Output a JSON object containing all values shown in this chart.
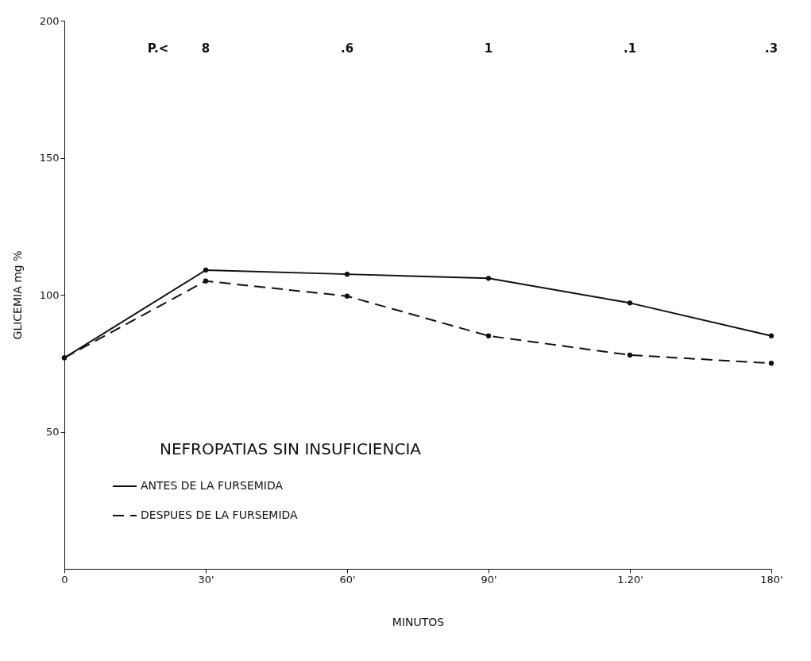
{
  "chart_data": {
    "type": "line",
    "categories": [
      "0",
      "30'",
      "60'",
      "90'",
      "1.20'",
      "180'"
    ],
    "series": [
      {
        "name": "ANTES DE LA FURSEMIDA",
        "color": "#111111",
        "line_style": "solid",
        "values": [
          77,
          109,
          107.5,
          106,
          97,
          85
        ]
      },
      {
        "name": "DESPUES DE LA FURSEMIDA",
        "color": "#111111",
        "line_style": "dashed",
        "values": [
          77,
          105,
          99.5,
          85,
          78,
          75
        ]
      }
    ],
    "xlabel": "MINUTOS",
    "ylabel": "GLICEMIA mg %",
    "ylim": [
      0,
      200
    ],
    "yticks": [
      50,
      100,
      150,
      200
    ],
    "annotations": [
      "NEFROPATIAS SIN INSUFICIENCIA",
      "P.<",
      "8",
      ".6",
      "1",
      ".1",
      ".3"
    ],
    "grid": false,
    "legend": "bottom left",
    "marker": "circle"
  }
}
